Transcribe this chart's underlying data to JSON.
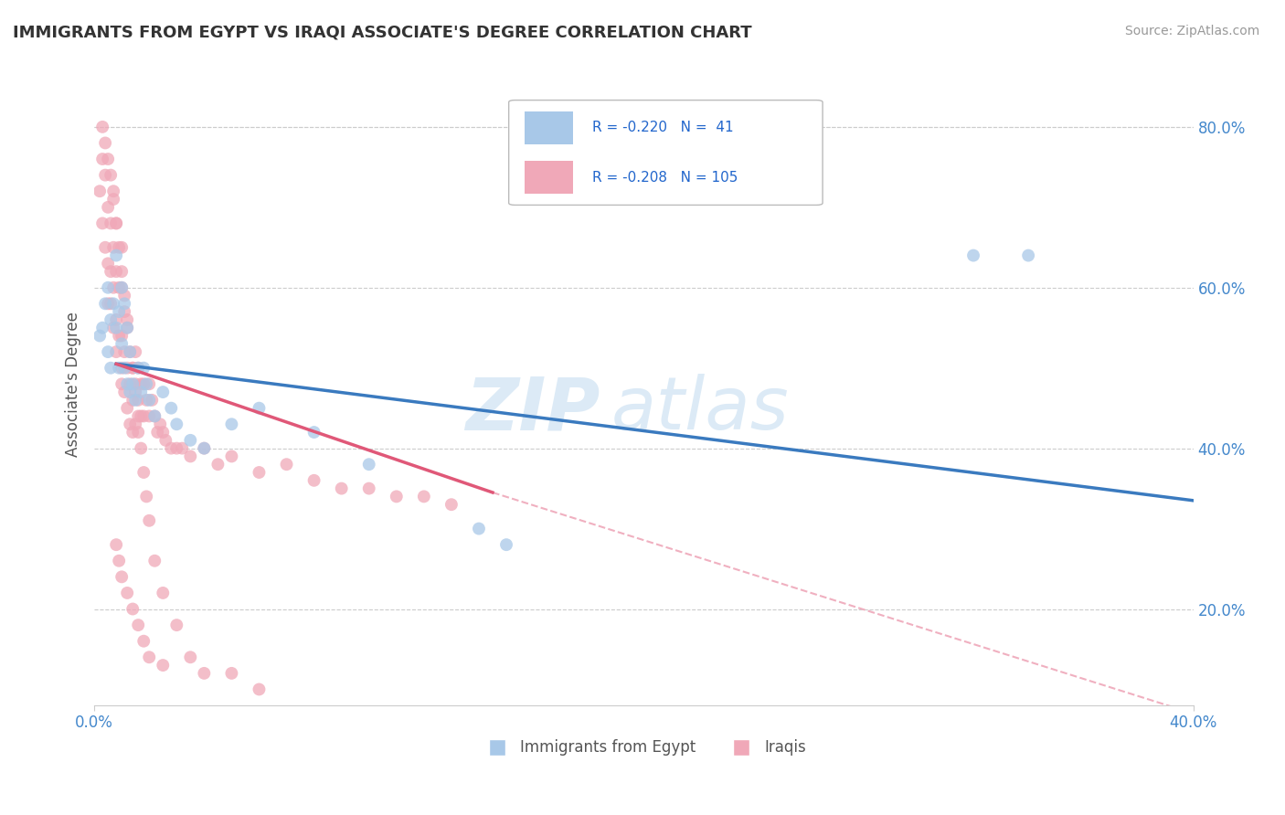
{
  "title": "IMMIGRANTS FROM EGYPT VS IRAQI ASSOCIATE'S DEGREE CORRELATION CHART",
  "source": "Source: ZipAtlas.com",
  "ylabel": "Associate's Degree",
  "xlim": [
    0.0,
    0.4
  ],
  "ylim": [
    0.08,
    0.88
  ],
  "xtick_labels": [
    "0.0%",
    "40.0%"
  ],
  "xtick_vals": [
    0.0,
    0.4
  ],
  "ytick_labels": [
    "20.0%",
    "40.0%",
    "60.0%",
    "80.0%"
  ],
  "ytick_vals": [
    0.2,
    0.4,
    0.6,
    0.8
  ],
  "color_egypt": "#a8c8e8",
  "color_iraq": "#f0a8b8",
  "color_egypt_line": "#3a7abf",
  "color_iraq_line": "#e05878",
  "color_dashed": "#f0b0c0",
  "watermark_zip": "ZIP",
  "watermark_atlas": "atlas",
  "egypt_line_x": [
    0.008,
    0.4
  ],
  "egypt_line_y": [
    0.505,
    0.335
  ],
  "iraq_line_x": [
    0.008,
    0.145
  ],
  "iraq_line_y": [
    0.505,
    0.345
  ],
  "dash_line_x": [
    0.145,
    0.4
  ],
  "dash_line_y": [
    0.345,
    0.07
  ],
  "egypt_scatter_x": [
    0.002,
    0.003,
    0.004,
    0.005,
    0.005,
    0.006,
    0.006,
    0.007,
    0.008,
    0.008,
    0.009,
    0.009,
    0.01,
    0.01,
    0.011,
    0.011,
    0.012,
    0.012,
    0.013,
    0.013,
    0.014,
    0.015,
    0.016,
    0.017,
    0.018,
    0.019,
    0.02,
    0.022,
    0.025,
    0.028,
    0.03,
    0.035,
    0.04,
    0.05,
    0.06,
    0.08,
    0.1,
    0.14,
    0.15,
    0.32,
    0.34
  ],
  "egypt_scatter_y": [
    0.54,
    0.55,
    0.58,
    0.52,
    0.6,
    0.56,
    0.5,
    0.58,
    0.64,
    0.55,
    0.57,
    0.5,
    0.6,
    0.53,
    0.58,
    0.5,
    0.55,
    0.48,
    0.52,
    0.47,
    0.48,
    0.46,
    0.5,
    0.47,
    0.5,
    0.48,
    0.46,
    0.44,
    0.47,
    0.45,
    0.43,
    0.41,
    0.4,
    0.43,
    0.45,
    0.42,
    0.38,
    0.3,
    0.28,
    0.64,
    0.64
  ],
  "iraq_scatter_x": [
    0.002,
    0.003,
    0.003,
    0.004,
    0.004,
    0.005,
    0.005,
    0.005,
    0.006,
    0.006,
    0.006,
    0.007,
    0.007,
    0.007,
    0.007,
    0.008,
    0.008,
    0.008,
    0.008,
    0.009,
    0.009,
    0.01,
    0.01,
    0.01,
    0.01,
    0.01,
    0.011,
    0.011,
    0.011,
    0.012,
    0.012,
    0.012,
    0.013,
    0.013,
    0.013,
    0.014,
    0.014,
    0.014,
    0.015,
    0.015,
    0.015,
    0.016,
    0.016,
    0.016,
    0.017,
    0.017,
    0.018,
    0.018,
    0.019,
    0.02,
    0.02,
    0.021,
    0.022,
    0.023,
    0.024,
    0.025,
    0.026,
    0.028,
    0.03,
    0.032,
    0.035,
    0.04,
    0.045,
    0.05,
    0.06,
    0.07,
    0.08,
    0.09,
    0.1,
    0.11,
    0.12,
    0.13,
    0.003,
    0.004,
    0.005,
    0.006,
    0.007,
    0.008,
    0.009,
    0.01,
    0.011,
    0.012,
    0.014,
    0.015,
    0.016,
    0.017,
    0.018,
    0.019,
    0.02,
    0.022,
    0.025,
    0.03,
    0.035,
    0.04,
    0.05,
    0.06,
    0.008,
    0.009,
    0.01,
    0.012,
    0.014,
    0.016,
    0.018,
    0.02,
    0.025
  ],
  "iraq_scatter_y": [
    0.72,
    0.76,
    0.68,
    0.74,
    0.65,
    0.7,
    0.63,
    0.58,
    0.68,
    0.62,
    0.58,
    0.72,
    0.65,
    0.6,
    0.55,
    0.68,
    0.62,
    0.56,
    0.52,
    0.6,
    0.54,
    0.65,
    0.6,
    0.54,
    0.5,
    0.48,
    0.57,
    0.52,
    0.47,
    0.55,
    0.5,
    0.45,
    0.52,
    0.48,
    0.43,
    0.5,
    0.46,
    0.42,
    0.52,
    0.48,
    0.43,
    0.5,
    0.46,
    0.42,
    0.48,
    0.44,
    0.48,
    0.44,
    0.46,
    0.48,
    0.44,
    0.46,
    0.44,
    0.42,
    0.43,
    0.42,
    0.41,
    0.4,
    0.4,
    0.4,
    0.39,
    0.4,
    0.38,
    0.39,
    0.37,
    0.38,
    0.36,
    0.35,
    0.35,
    0.34,
    0.34,
    0.33,
    0.8,
    0.78,
    0.76,
    0.74,
    0.71,
    0.68,
    0.65,
    0.62,
    0.59,
    0.56,
    0.5,
    0.47,
    0.44,
    0.4,
    0.37,
    0.34,
    0.31,
    0.26,
    0.22,
    0.18,
    0.14,
    0.12,
    0.12,
    0.1,
    0.28,
    0.26,
    0.24,
    0.22,
    0.2,
    0.18,
    0.16,
    0.14,
    0.13
  ]
}
